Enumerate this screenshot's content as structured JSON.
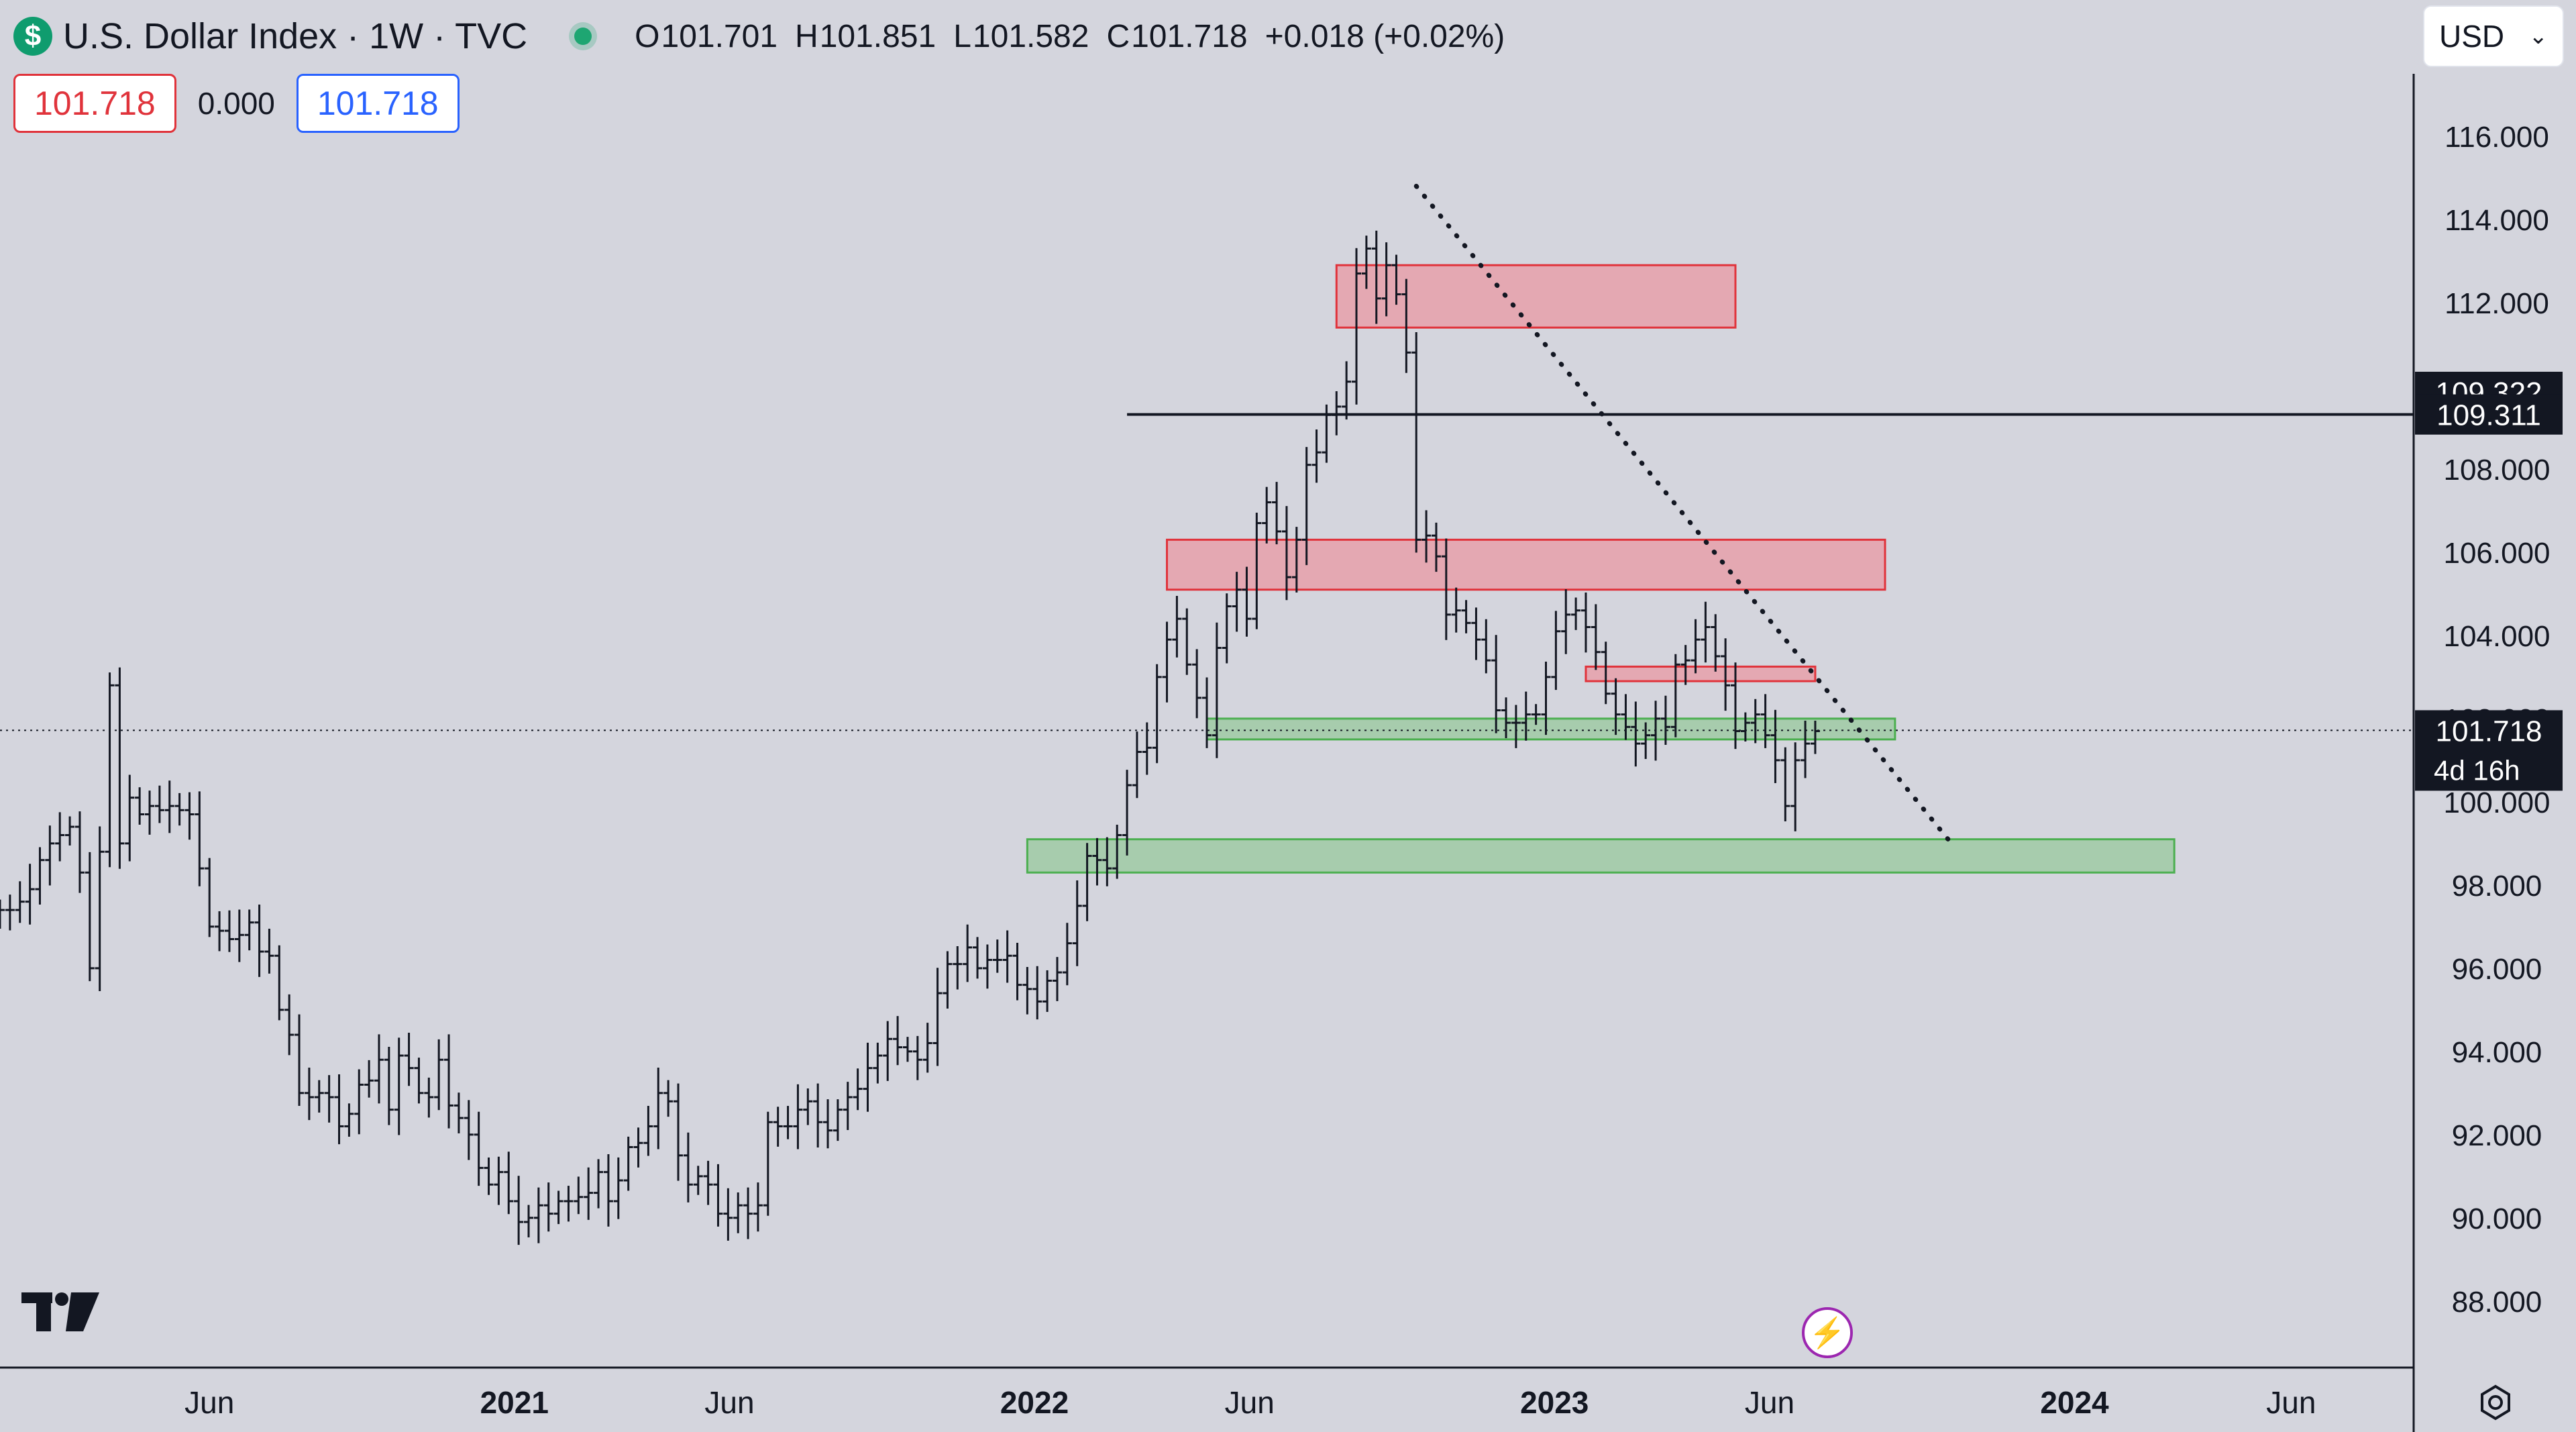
{
  "header": {
    "symbol_icon": "dollar-sign-icon",
    "symbol_icon_glyph": "$",
    "title": "U.S. Dollar Index · 1W · TVC",
    "ohlc": {
      "o_label": "O",
      "o_value": "101.701",
      "h_label": "H",
      "h_value": "101.851",
      "l_label": "L",
      "l_value": "101.582",
      "c_label": "C",
      "c_value": "101.718",
      "change": "+0.018 (+0.02%)"
    }
  },
  "trade": {
    "sell_price": "101.718",
    "spread": "0.000",
    "buy_price": "101.718"
  },
  "currency_select": {
    "value": "USD",
    "chevron_icon": "chevron-down-icon"
  },
  "chart_data": {
    "type": "ohlc",
    "title": "U.S. Dollar Index · 1W · TVC",
    "y_axis": {
      "ticks": [
        "88.000",
        "90.000",
        "92.000",
        "94.000",
        "96.000",
        "98.000",
        "100.000",
        "102.000",
        "104.000",
        "106.000",
        "108.000",
        "110.000",
        "112.000",
        "114.000",
        "116.000"
      ],
      "range": [
        86.4,
        117.5
      ],
      "position": "right"
    },
    "x_axis": {
      "ticks": [
        {
          "label": "Jun",
          "date": "2020-06-01",
          "bold": false
        },
        {
          "label": "2021",
          "date": "2021-01-01",
          "bold": true
        },
        {
          "label": "Jun",
          "date": "2021-06-01",
          "bold": false
        },
        {
          "label": "2022",
          "date": "2022-01-01",
          "bold": true
        },
        {
          "label": "Jun",
          "date": "2022-06-01",
          "bold": false
        },
        {
          "label": "2023",
          "date": "2023-01-01",
          "bold": true
        },
        {
          "label": "Jun",
          "date": "2023-06-01",
          "bold": false
        },
        {
          "label": "2024",
          "date": "2024-01-01",
          "bold": true
        },
        {
          "label": "Jun",
          "date": "2024-06-01",
          "bold": false
        }
      ],
      "range": [
        "2020-01-06",
        "2024-08-26"
      ]
    },
    "grid": false,
    "price_tags": [
      {
        "label": "109.322",
        "value": 109.322
      },
      {
        "label": "109.311",
        "value": 109.311
      },
      {
        "label": "101.718",
        "value": 101.718,
        "sublabel": "4d 16h"
      }
    ],
    "horizontal_line": {
      "value": 109.311,
      "from": "2022-03-07",
      "to": "2024-08-26",
      "color": "#131722"
    },
    "current_price_line": {
      "value": 101.718,
      "style": "dotted"
    },
    "trend_line": {
      "from": {
        "date": "2022-09-26",
        "price": 114.8
      },
      "to": {
        "date": "2023-10-09",
        "price": 98.9
      },
      "style": "dotted"
    },
    "zones": [
      {
        "kind": "supply",
        "color": "#e0333b",
        "from": "2022-08-01",
        "to": "2023-05-08",
        "low": 111.4,
        "high": 112.9
      },
      {
        "kind": "supply",
        "color": "#e0333b",
        "from": "2022-04-04",
        "to": "2023-08-21",
        "low": 105.1,
        "high": 106.3
      },
      {
        "kind": "supply",
        "color": "#e0333b",
        "from": "2023-01-23",
        "to": "2023-07-03",
        "low": 102.9,
        "high": 103.25
      },
      {
        "kind": "demand",
        "color": "#4caf50",
        "from": "2022-05-02",
        "to": "2023-08-28",
        "low": 101.5,
        "high": 102.0
      },
      {
        "kind": "demand",
        "color": "#4caf50",
        "from": "2021-12-27",
        "to": "2024-03-11",
        "low": 98.3,
        "high": 99.1
      }
    ],
    "series": [
      {
        "type": "ohlc",
        "start_date": "2020-01-06",
        "interval": "1W",
        "closes": [
          97.4,
          97.4,
          97.6,
          97.9,
          98.6,
          99.0,
          99.2,
          99.4,
          98.3,
          96.0,
          98.8,
          102.8,
          99.0,
          100.1,
          99.7,
          99.9,
          99.8,
          99.9,
          99.8,
          99.7,
          98.4,
          97.0,
          96.9,
          96.7,
          96.8,
          97.1,
          96.4,
          96.3,
          95.0,
          94.4,
          93.0,
          92.9,
          93.0,
          92.9,
          92.2,
          92.5,
          93.2,
          93.3,
          93.8,
          92.6,
          93.9,
          93.6,
          93.0,
          92.9,
          93.8,
          92.7,
          92.4,
          92.0,
          91.2,
          90.8,
          91.1,
          90.4,
          89.9,
          90.0,
          90.3,
          90.1,
          90.4,
          90.4,
          90.5,
          90.6,
          91.1,
          90.4,
          90.9,
          91.7,
          91.8,
          92.2,
          93.0,
          92.8,
          91.5,
          90.8,
          91.0,
          90.8,
          90.1,
          90.0,
          90.3,
          90.1,
          90.3,
          92.3,
          92.2,
          92.2,
          92.6,
          92.8,
          92.3,
          92.1,
          92.6,
          92.9,
          93.1,
          93.6,
          93.9,
          94.3,
          94.1,
          94.0,
          93.8,
          94.2,
          95.4,
          96.1,
          96.1,
          96.5,
          96.0,
          96.2,
          96.2,
          96.3,
          95.6,
          95.5,
          95.2,
          95.7,
          95.9,
          96.6,
          97.5,
          98.7,
          98.6,
          98.4,
          99.2,
          100.4,
          101.2,
          101.3,
          103.0,
          103.9,
          104.4,
          103.3,
          102.5,
          101.6,
          103.7,
          104.7,
          105.1,
          104.4,
          106.7,
          107.2,
          106.5,
          105.4,
          106.3,
          108.1,
          108.4,
          109.3,
          109.5,
          110.1,
          112.7,
          113.3,
          112.1,
          112.9,
          112.2,
          110.8,
          106.3,
          106.4,
          105.9,
          104.5,
          104.6,
          104.3,
          103.9,
          103.4,
          102.2,
          101.9,
          101.9,
          102.1,
          102.1,
          103.0,
          104.1,
          104.5,
          104.6,
          104.2,
          103.6,
          102.6,
          102.1,
          101.8,
          101.4,
          101.6,
          102.0,
          101.8,
          103.3,
          103.4,
          103.9,
          104.2,
          103.5,
          102.8,
          101.7,
          101.9,
          102.1,
          101.6,
          101.0,
          99.9,
          101.0,
          101.4,
          101.7
        ]
      }
    ]
  },
  "branding": {
    "logo_icon": "tradingview-logo-icon",
    "logo_text": "TV"
  },
  "widgets": {
    "lightning_icon": "lightning-bolt-icon",
    "settings_icon": "gear-icon"
  },
  "colors": {
    "background": "#d4d5dd",
    "bars": "#131722",
    "supply_zone_border": "#e0333b",
    "supply_zone_fill": "#e6a0aa",
    "demand_zone_border": "#4caf50",
    "demand_zone_fill": "#9fcaa5",
    "tag_bg": "#131722",
    "tag_text": "#ffffff",
    "bolt": "#9c27b0"
  }
}
